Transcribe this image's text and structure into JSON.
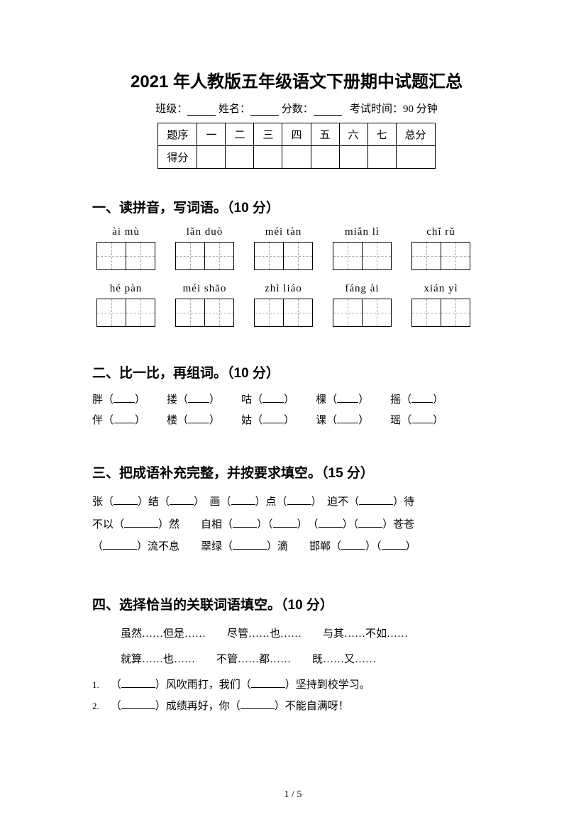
{
  "title": "2021 年人教版五年级语文下册期中试题汇总",
  "info": {
    "class_label": "班级：",
    "name_label": "姓名：",
    "score_label": "分数：",
    "exam_time_label": "考试时间：90 分钟"
  },
  "score_table": {
    "headers": [
      "题序",
      "一",
      "二",
      "三",
      "四",
      "五",
      "六",
      "七",
      "总分"
    ],
    "row2_label": "得分"
  },
  "section1": {
    "heading": "一、读拼音，写词语。（10 分）",
    "row1": [
      "ài  mù",
      "lǎn duò",
      "méi tàn",
      "miǎn lì",
      "chǐ rǔ"
    ],
    "row2": [
      "hé  pàn",
      "méi shāo",
      "zhì liáo",
      "fáng ài",
      "xián yì"
    ]
  },
  "section2": {
    "heading": "二、比一比，再组词。（10 分）",
    "row1": [
      "胖",
      "搂",
      "咕",
      "棵",
      "摇"
    ],
    "row2": [
      "伴",
      "楼",
      "姑",
      "课",
      "瑶"
    ]
  },
  "section3": {
    "heading": "三、把成语补充完整，并按要求填空。（15 分）",
    "line1_a": "张（",
    "line1_b": "）结（",
    "line1_c": "）　画（",
    "line1_d": "）点（",
    "line1_e": "）　迫不（",
    "line1_f": "）待",
    "line2_a": "不以（",
    "line2_b": "）然　　自相（",
    "line2_c": "）（",
    "line2_d": "）　（",
    "line2_e": "）（",
    "line2_f": "）苍苍",
    "line3_a": "（",
    "line3_b": "）流不息　　翠绿（",
    "line3_c": "）滴　　邯郸（",
    "line3_d": "）（",
    "line3_e": "）"
  },
  "section4": {
    "heading": "四、选择恰当的关联词语填空。（10 分）",
    "options_line1": "虽然……但是……　　尽管……也……　　与其……不如……",
    "options_line2": "就算……也……　　不管……都……　　既……又……",
    "item1_a": "（",
    "item1_b": "）风吹雨打，我们（",
    "item1_c": "）坚持到校学习。",
    "item2_a": "（",
    "item2_b": "）成绩再好，你（",
    "item2_c": "）不能自满呀！",
    "num1": "1.",
    "num2": "2."
  },
  "footer": "1 / 5"
}
